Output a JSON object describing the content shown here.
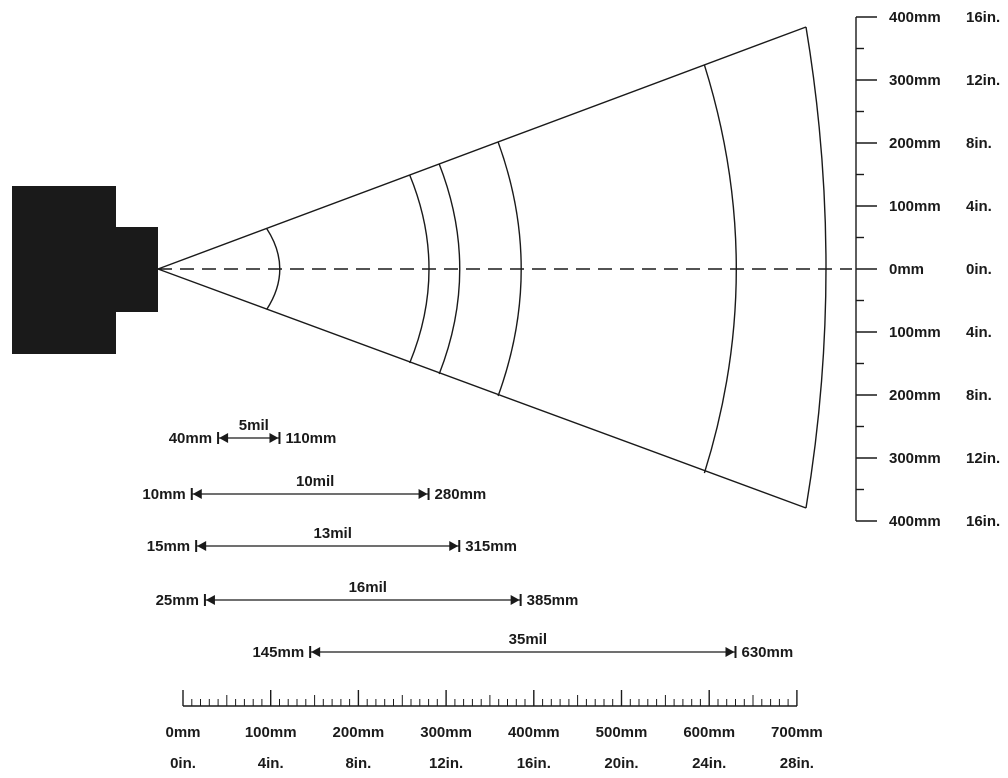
{
  "colors": {
    "ink": "#1a1a1a",
    "background": "#ffffff"
  },
  "scanner": {
    "icon": "barcode-scanner-body"
  },
  "field_of_view": {
    "center_line": "dashed",
    "zone_arcs_mm": [
      110,
      280,
      315,
      385,
      630
    ]
  },
  "vertical_scale": {
    "ticks": [
      {
        "mm": "400mm",
        "in": "16in.",
        "offset_mm": 400
      },
      {
        "mm": "300mm",
        "in": "12in.",
        "offset_mm": 300
      },
      {
        "mm": "200mm",
        "in": "8in.",
        "offset_mm": 200
      },
      {
        "mm": "100mm",
        "in": "4in.",
        "offset_mm": 100
      },
      {
        "mm": "0mm",
        "in": "0in.",
        "offset_mm": 0
      },
      {
        "mm": "100mm",
        "in": "4in.",
        "offset_mm": -100
      },
      {
        "mm": "200mm",
        "in": "8in.",
        "offset_mm": -200
      },
      {
        "mm": "300mm",
        "in": "12in.",
        "offset_mm": -300
      },
      {
        "mm": "400mm",
        "in": "16in.",
        "offset_mm": -400
      }
    ]
  },
  "ranges": [
    {
      "label": "5mil",
      "near": "40mm",
      "far": "110mm",
      "near_mm": 40,
      "far_mm": 110
    },
    {
      "label": "10mil",
      "near": "10mm",
      "far": "280mm",
      "near_mm": 10,
      "far_mm": 280
    },
    {
      "label": "13mil",
      "near": "15mm",
      "far": "315mm",
      "near_mm": 15,
      "far_mm": 315
    },
    {
      "label": "16mil",
      "near": "25mm",
      "far": "385mm",
      "near_mm": 25,
      "far_mm": 385
    },
    {
      "label": "35mil",
      "near": "145mm",
      "far": "630mm",
      "near_mm": 145,
      "far_mm": 630
    }
  ],
  "horizontal_scale": {
    "ticks": [
      {
        "mm": "0mm",
        "in": "0in.",
        "value_mm": 0
      },
      {
        "mm": "100mm",
        "in": "4in.",
        "value_mm": 100
      },
      {
        "mm": "200mm",
        "in": "8in.",
        "value_mm": 200
      },
      {
        "mm": "300mm",
        "in": "12in.",
        "value_mm": 300
      },
      {
        "mm": "400mm",
        "in": "16in.",
        "value_mm": 400
      },
      {
        "mm": "500mm",
        "in": "20in.",
        "value_mm": 500
      },
      {
        "mm": "600mm",
        "in": "24in.",
        "value_mm": 600
      },
      {
        "mm": "700mm",
        "in": "28in.",
        "value_mm": 700
      }
    ],
    "minor_step_mm": 10
  }
}
